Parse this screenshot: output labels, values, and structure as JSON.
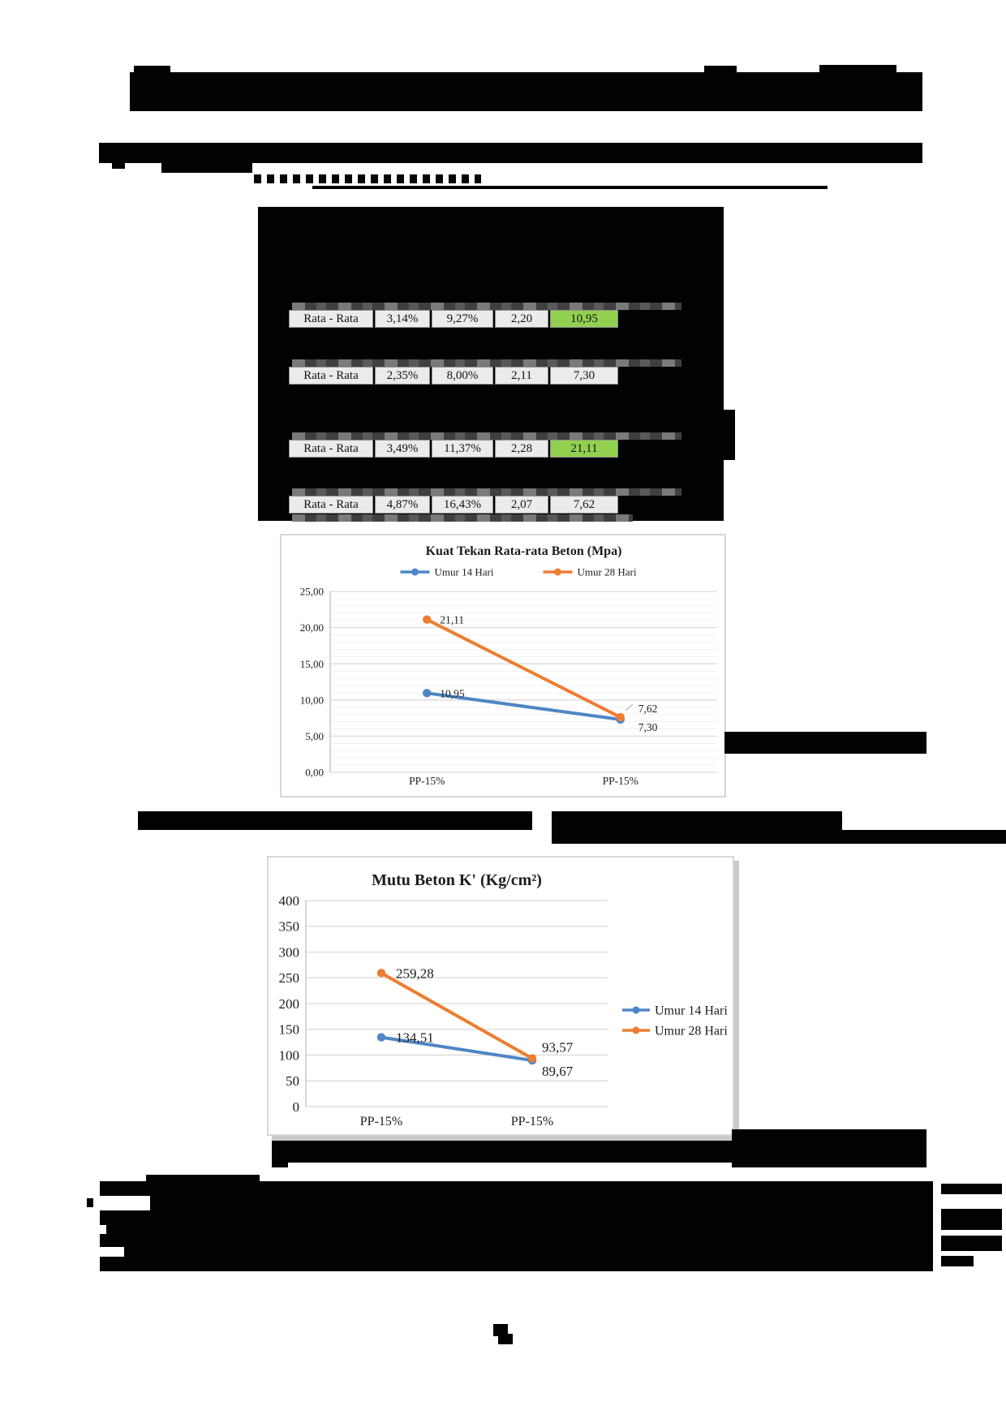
{
  "table": {
    "highlight_color": "#92d050",
    "rows": [
      {
        "label": "Rata - Rata",
        "c1": "3,14%",
        "c2": "9,27%",
        "c3": "2,20",
        "c4": "10,95",
        "highlight": true
      },
      {
        "label": "Rata - Rata",
        "c1": "2,35%",
        "c2": "8,00%",
        "c3": "2,11",
        "c4": "7,30",
        "highlight": false
      },
      {
        "label": "Rata - Rata",
        "c1": "3,49%",
        "c2": "11,37%",
        "c3": "2,28",
        "c4": "21,11",
        "highlight": true
      },
      {
        "label": "Rata - Rata",
        "c1": "4,87%",
        "c2": "16,43%",
        "c3": "2,07",
        "c4": "7,62",
        "highlight": false
      }
    ]
  },
  "chart_data": [
    {
      "type": "line",
      "title": "Kuat Tekan Rata-rata Beton (Mpa)",
      "categories": [
        "PP-15%",
        "PP-15%"
      ],
      "series": [
        {
          "name": "Umur 14 Hari",
          "color": "#4f86c6",
          "values": [
            10.95,
            7.3
          ],
          "labels": [
            "10,95",
            "7,30"
          ]
        },
        {
          "name": "Umur 28 Hari",
          "color": "#ed7d31",
          "values": [
            21.11,
            7.62
          ],
          "labels": [
            "21,11",
            "7,62"
          ]
        }
      ],
      "ylim": [
        0,
        25
      ],
      "ytick_step": 5,
      "ytick_labels": [
        "0,00",
        "5,00",
        "10,00",
        "15,00",
        "20,00",
        "25,00"
      ],
      "grid_minor": 1,
      "legend_position": "top"
    },
    {
      "type": "line",
      "title": "Mutu Beton K' (Kg/cm²)",
      "categories": [
        "PP-15%",
        "PP-15%"
      ],
      "series": [
        {
          "name": "Umur 14 Hari",
          "color": "#4f86c6",
          "values": [
            134.51,
            89.67
          ],
          "labels": [
            "134,51",
            "89,67"
          ]
        },
        {
          "name": "Umur 28 Hari",
          "color": "#ed7d31",
          "values": [
            259.28,
            93.57
          ],
          "labels": [
            "259,28",
            "93,57"
          ]
        }
      ],
      "ylim": [
        0,
        400
      ],
      "ytick_step": 50,
      "ytick_labels": [
        "0",
        "50",
        "100",
        "150",
        "200",
        "250",
        "300",
        "350",
        "400"
      ],
      "grid_minor": 0,
      "legend_position": "right"
    }
  ]
}
